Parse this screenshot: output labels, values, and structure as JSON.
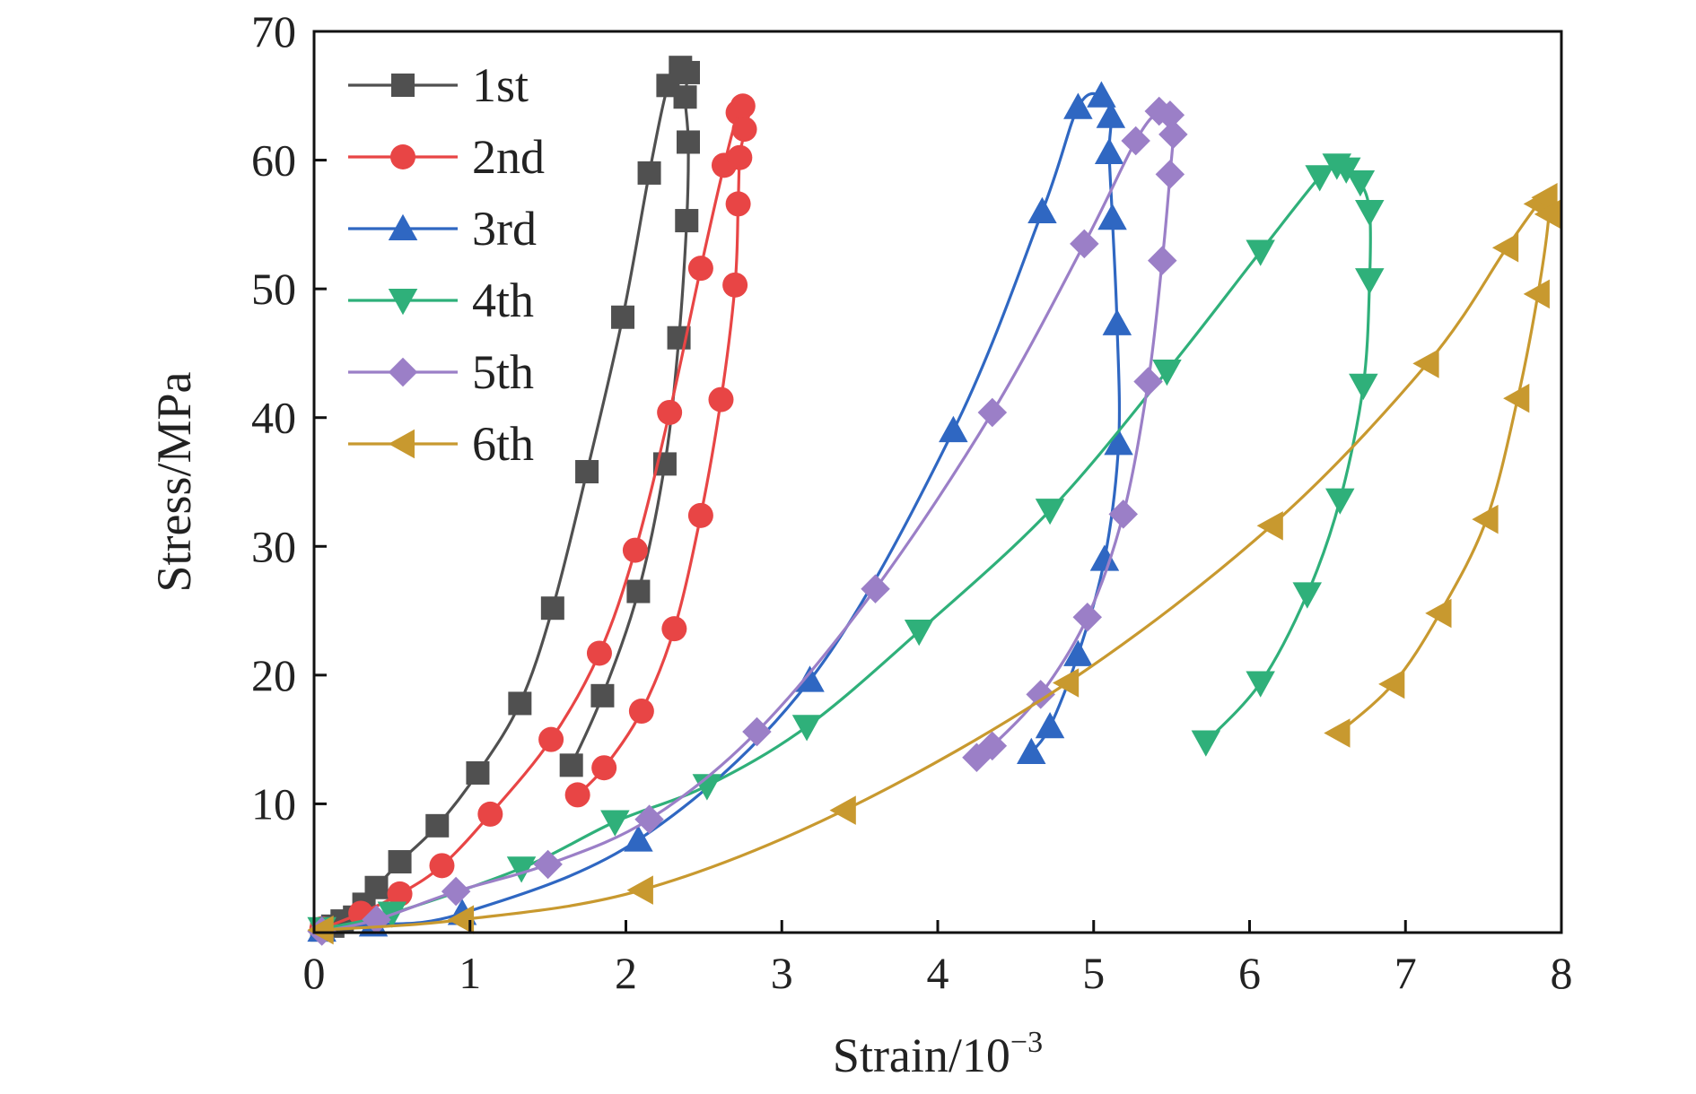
{
  "chart_data": {
    "type": "line",
    "title": "",
    "xlabel": "Strain/10",
    "xlabel_superscript": "−3",
    "ylabel": "Stress/MPa",
    "xlim": [
      0,
      8
    ],
    "ylim": [
      0,
      70
    ],
    "xticks": [
      0,
      1,
      2,
      3,
      4,
      5,
      6,
      7,
      8
    ],
    "yticks": [
      10,
      20,
      30,
      40,
      50,
      60,
      70
    ],
    "grid": false,
    "legend_position": "top-left",
    "series": [
      {
        "name": "1st",
        "color": "#505050",
        "marker": "square",
        "points": [
          [
            0.05,
            0.2
          ],
          [
            0.12,
            0.5
          ],
          [
            0.18,
            0.9
          ],
          [
            0.26,
            1.2
          ],
          [
            0.32,
            2.2
          ],
          [
            0.4,
            3.5
          ],
          [
            0.55,
            5.5
          ],
          [
            0.79,
            8.3
          ],
          [
            1.05,
            12.4
          ],
          [
            1.32,
            17.8
          ],
          [
            1.53,
            25.2
          ],
          [
            1.75,
            35.8
          ],
          [
            1.98,
            47.8
          ],
          [
            2.15,
            59.0
          ],
          [
            2.27,
            65.8
          ],
          [
            2.35,
            67.2
          ],
          [
            2.4,
            66.8
          ],
          [
            2.38,
            64.9
          ],
          [
            2.4,
            61.4
          ],
          [
            2.39,
            55.3
          ],
          [
            2.34,
            46.2
          ],
          [
            2.25,
            36.4
          ],
          [
            2.08,
            26.5
          ],
          [
            1.85,
            18.4
          ],
          [
            1.65,
            13.0
          ]
        ]
      },
      {
        "name": "2nd",
        "color": "#e84545",
        "marker": "circle",
        "points": [
          [
            0.05,
            0.3
          ],
          [
            0.3,
            1.5
          ],
          [
            0.55,
            3.0
          ],
          [
            0.82,
            5.2
          ],
          [
            1.13,
            9.2
          ],
          [
            1.52,
            15.0
          ],
          [
            1.83,
            21.7
          ],
          [
            2.06,
            29.7
          ],
          [
            2.28,
            40.4
          ],
          [
            2.48,
            51.6
          ],
          [
            2.63,
            59.6
          ],
          [
            2.72,
            63.7
          ],
          [
            2.75,
            64.2
          ],
          [
            2.76,
            62.4
          ],
          [
            2.73,
            60.2
          ],
          [
            2.72,
            56.6
          ],
          [
            2.7,
            50.3
          ],
          [
            2.61,
            41.4
          ],
          [
            2.48,
            32.4
          ],
          [
            2.31,
            23.6
          ],
          [
            2.1,
            17.2
          ],
          [
            1.86,
            12.8
          ],
          [
            1.69,
            10.7
          ]
        ]
      },
      {
        "name": "3rd",
        "color": "#2f67c2",
        "marker": "triangle-up",
        "points": [
          [
            0.05,
            0.2
          ],
          [
            0.38,
            0.6
          ],
          [
            0.95,
            1.5
          ],
          [
            2.08,
            7.2
          ],
          [
            3.18,
            19.6
          ],
          [
            4.1,
            39.0
          ],
          [
            4.67,
            56.0
          ],
          [
            4.9,
            64.1
          ],
          [
            5.05,
            65.0
          ],
          [
            5.11,
            63.4
          ],
          [
            5.1,
            60.6
          ],
          [
            5.12,
            55.5
          ],
          [
            5.15,
            47.3
          ],
          [
            5.16,
            38.0
          ],
          [
            5.07,
            29.0
          ],
          [
            4.9,
            21.6
          ],
          [
            4.72,
            16.0
          ],
          [
            4.6,
            14.0
          ]
        ]
      },
      {
        "name": "4th",
        "color": "#2fb07a",
        "marker": "triangle-down",
        "points": [
          [
            0.05,
            0.3
          ],
          [
            0.5,
            1.5
          ],
          [
            1.33,
            5.0
          ],
          [
            1.93,
            8.6
          ],
          [
            2.52,
            11.4
          ],
          [
            3.16,
            16.0
          ],
          [
            3.88,
            23.4
          ],
          [
            4.72,
            32.8
          ],
          [
            5.47,
            43.6
          ],
          [
            6.07,
            52.9
          ],
          [
            6.45,
            58.7
          ],
          [
            6.56,
            59.6
          ],
          [
            6.62,
            59.3
          ],
          [
            6.71,
            58.3
          ],
          [
            6.77,
            56.0
          ],
          [
            6.77,
            50.7
          ],
          [
            6.73,
            42.5
          ],
          [
            6.58,
            33.6
          ],
          [
            6.37,
            26.3
          ],
          [
            6.07,
            19.4
          ],
          [
            5.72,
            14.8
          ]
        ]
      },
      {
        "name": "5th",
        "color": "#9b7fc7",
        "marker": "diamond",
        "points": [
          [
            0.05,
            0.1
          ],
          [
            0.4,
            1.0
          ],
          [
            0.91,
            3.2
          ],
          [
            1.5,
            5.3
          ],
          [
            2.15,
            8.8
          ],
          [
            2.84,
            15.6
          ],
          [
            3.6,
            26.7
          ],
          [
            4.35,
            40.4
          ],
          [
            4.94,
            53.5
          ],
          [
            5.27,
            61.5
          ],
          [
            5.42,
            63.8
          ],
          [
            5.49,
            63.5
          ],
          [
            5.51,
            62.0
          ],
          [
            5.49,
            58.9
          ],
          [
            5.44,
            52.2
          ],
          [
            5.35,
            42.8
          ],
          [
            5.19,
            32.5
          ],
          [
            4.96,
            24.5
          ],
          [
            4.66,
            18.5
          ],
          [
            4.35,
            14.5
          ],
          [
            4.25,
            13.6
          ]
        ]
      },
      {
        "name": "6th",
        "color": "#c8992f",
        "marker": "triangle-left",
        "points": [
          [
            0.05,
            0.2
          ],
          [
            0.95,
            1.0
          ],
          [
            2.1,
            3.3
          ],
          [
            3.4,
            9.5
          ],
          [
            4.83,
            19.4
          ],
          [
            6.14,
            31.6
          ],
          [
            7.14,
            44.2
          ],
          [
            7.65,
            53.2
          ],
          [
            7.85,
            56.6
          ],
          [
            7.9,
            57.1
          ],
          [
            7.92,
            55.8
          ],
          [
            7.85,
            49.6
          ],
          [
            7.72,
            41.5
          ],
          [
            7.52,
            32.1
          ],
          [
            7.22,
            24.8
          ],
          [
            6.92,
            19.3
          ],
          [
            6.57,
            15.5
          ]
        ]
      }
    ]
  }
}
